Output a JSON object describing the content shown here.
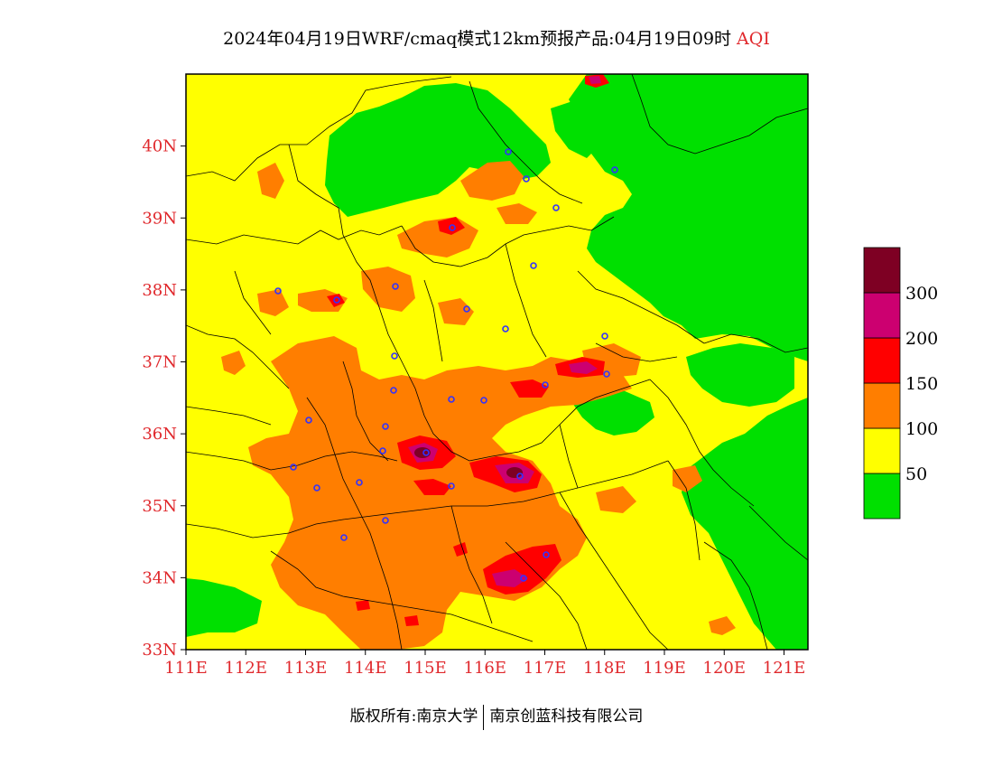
{
  "title": {
    "main": "2024年04月19日WRF/cmaq模式12km预报产品:04月19日09时",
    "variable": "AQI"
  },
  "map": {
    "lat_range": [
      33,
      41
    ],
    "lon_range": [
      111,
      121.4
    ],
    "y_ticks": [
      "33N",
      "34N",
      "35N",
      "36N",
      "37N",
      "38N",
      "39N",
      "40N"
    ],
    "x_ticks": [
      "111E",
      "112E",
      "113E",
      "114E",
      "115E",
      "116E",
      "117E",
      "118E",
      "119E",
      "120E",
      "121E"
    ],
    "colors": {
      "good": "#00e000",
      "moderate": "#ffff00",
      "usg": "#ff7e00",
      "unhealthy": "#ff0000",
      "very_unhealthy": "#cc0070",
      "hazardous": "#7e0023"
    }
  },
  "legend": {
    "labels": [
      "50",
      "100",
      "150",
      "200",
      "300"
    ],
    "colors": [
      "#00e000",
      "#ffff00",
      "#ff7e00",
      "#ff0000",
      "#cc0070",
      "#7e0023"
    ]
  },
  "copyright": {
    "left": "版权所有:南京大学",
    "right": "南京创蓝科技有限公司"
  }
}
